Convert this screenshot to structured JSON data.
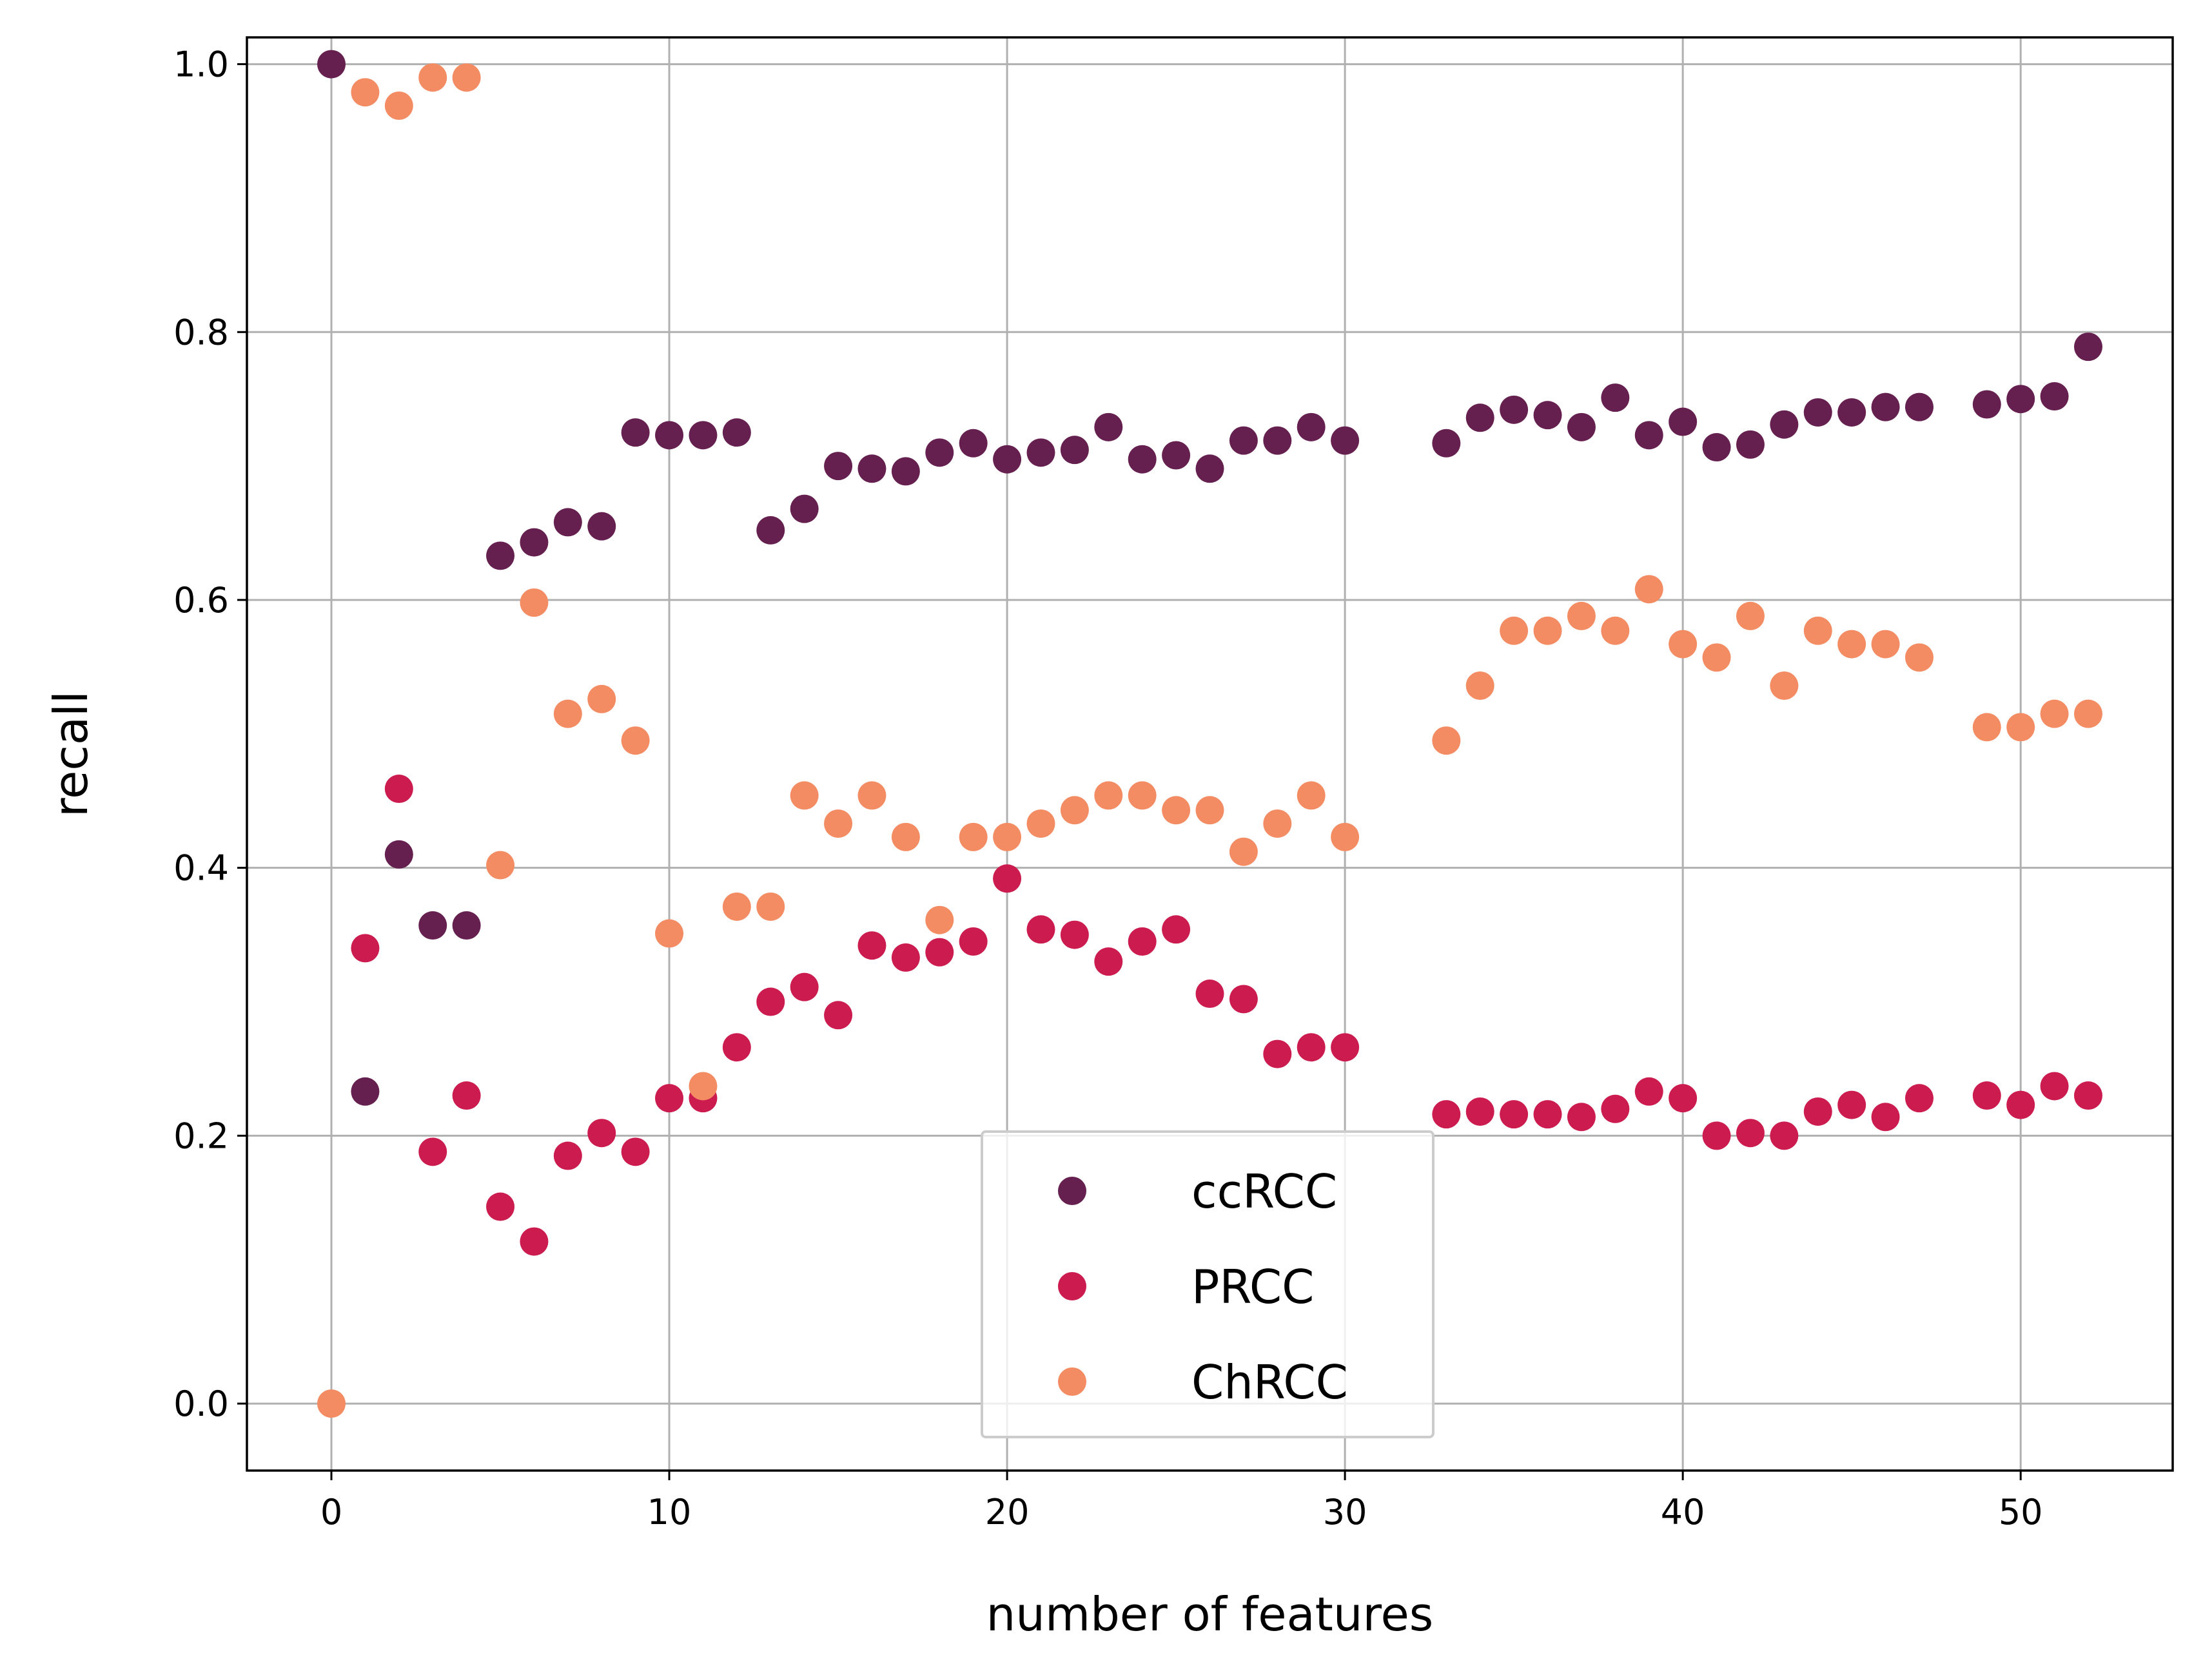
{
  "chart_data": {
    "type": "scatter",
    "title": "",
    "xlabel": "number of features",
    "ylabel": "recall",
    "xlim": [
      -2.5,
      54.5
    ],
    "ylim": [
      -0.05,
      1.02
    ],
    "xticks": [
      0,
      10,
      20,
      30,
      40,
      50
    ],
    "xtick_labels": [
      "0",
      "10",
      "20",
      "30",
      "40",
      "50"
    ],
    "yticks": [
      0.0,
      0.2,
      0.4,
      0.6,
      0.8,
      1.0
    ],
    "ytick_labels": [
      "0.0",
      "0.2",
      "0.4",
      "0.6",
      "0.8",
      "1.0"
    ],
    "grid": true,
    "legend_position": "lower-center",
    "series": [
      {
        "name": "ccRCC",
        "color": "#66204f",
        "points": [
          [
            0,
            1.0
          ],
          [
            1,
            0.233
          ],
          [
            2,
            0.41
          ],
          [
            3,
            0.357
          ],
          [
            4,
            0.357
          ],
          [
            5,
            0.633
          ],
          [
            6,
            0.643
          ],
          [
            7,
            0.658
          ],
          [
            8,
            0.655
          ],
          [
            9,
            0.725
          ],
          [
            10,
            0.723
          ],
          [
            11,
            0.723
          ],
          [
            12,
            0.725
          ],
          [
            13,
            0.652
          ],
          [
            14,
            0.668
          ],
          [
            15,
            0.7
          ],
          [
            16,
            0.698
          ],
          [
            17,
            0.696
          ],
          [
            18,
            0.71
          ],
          [
            19,
            0.717
          ],
          [
            20,
            0.705
          ],
          [
            21,
            0.71
          ],
          [
            22,
            0.712
          ],
          [
            23,
            0.729
          ],
          [
            24,
            0.705
          ],
          [
            25,
            0.708
          ],
          [
            26,
            0.698
          ],
          [
            27,
            0.719
          ],
          [
            28,
            0.719
          ],
          [
            29,
            0.729
          ],
          [
            30,
            0.719
          ],
          [
            33,
            0.717
          ],
          [
            34,
            0.736
          ],
          [
            35,
            0.742
          ],
          [
            36,
            0.738
          ],
          [
            37,
            0.729
          ],
          [
            38,
            0.751
          ],
          [
            39,
            0.723
          ],
          [
            40,
            0.733
          ],
          [
            41,
            0.714
          ],
          [
            42,
            0.716
          ],
          [
            43,
            0.731
          ],
          [
            44,
            0.74
          ],
          [
            45,
            0.74
          ],
          [
            46,
            0.744
          ],
          [
            47,
            0.744
          ],
          [
            49,
            0.746
          ],
          [
            50,
            0.75
          ],
          [
            51,
            0.752
          ],
          [
            52,
            0.789
          ]
        ]
      },
      {
        "name": "PRCC",
        "color": "#cb1b4f",
        "points": [
          [
            1,
            0.34
          ],
          [
            2,
            0.459
          ],
          [
            3,
            0.188
          ],
          [
            4,
            0.23
          ],
          [
            5,
            0.147
          ],
          [
            6,
            0.121
          ],
          [
            7,
            0.185
          ],
          [
            8,
            0.202
          ],
          [
            9,
            0.188
          ],
          [
            10,
            0.228
          ],
          [
            11,
            0.228
          ],
          [
            12,
            0.266
          ],
          [
            13,
            0.3
          ],
          [
            14,
            0.311
          ],
          [
            15,
            0.29
          ],
          [
            16,
            0.342
          ],
          [
            17,
            0.333
          ],
          [
            18,
            0.337
          ],
          [
            19,
            0.345
          ],
          [
            20,
            0.392
          ],
          [
            21,
            0.354
          ],
          [
            22,
            0.35
          ],
          [
            23,
            0.33
          ],
          [
            24,
            0.345
          ],
          [
            25,
            0.354
          ],
          [
            26,
            0.306
          ],
          [
            27,
            0.302
          ],
          [
            28,
            0.261
          ],
          [
            29,
            0.266
          ],
          [
            30,
            0.266
          ],
          [
            33,
            0.216
          ],
          [
            34,
            0.218
          ],
          [
            35,
            0.216
          ],
          [
            36,
            0.216
          ],
          [
            37,
            0.214
          ],
          [
            38,
            0.22
          ],
          [
            39,
            0.233
          ],
          [
            40,
            0.228
          ],
          [
            41,
            0.2
          ],
          [
            42,
            0.202
          ],
          [
            43,
            0.2
          ],
          [
            44,
            0.218
          ],
          [
            45,
            0.223
          ],
          [
            46,
            0.214
          ],
          [
            47,
            0.228
          ],
          [
            49,
            0.23
          ],
          [
            50,
            0.223
          ],
          [
            51,
            0.237
          ],
          [
            52,
            0.23
          ]
        ]
      },
      {
        "name": "ChRCC",
        "color": "#f48c63",
        "points": [
          [
            0,
            0.0
          ],
          [
            1,
            0.979
          ],
          [
            2,
            0.969
          ],
          [
            3,
            0.99
          ],
          [
            4,
            0.99
          ],
          [
            5,
            0.402
          ],
          [
            6,
            0.598
          ],
          [
            7,
            0.515
          ],
          [
            8,
            0.526
          ],
          [
            9,
            0.495
          ],
          [
            10,
            0.351
          ],
          [
            11,
            0.237
          ],
          [
            12,
            0.371
          ],
          [
            13,
            0.371
          ],
          [
            14,
            0.454
          ],
          [
            15,
            0.433
          ],
          [
            16,
            0.454
          ],
          [
            17,
            0.423
          ],
          [
            18,
            0.361
          ],
          [
            19,
            0.423
          ],
          [
            20,
            0.423
          ],
          [
            21,
            0.433
          ],
          [
            22,
            0.443
          ],
          [
            23,
            0.454
          ],
          [
            24,
            0.454
          ],
          [
            25,
            0.443
          ],
          [
            26,
            0.443
          ],
          [
            27,
            0.412
          ],
          [
            28,
            0.433
          ],
          [
            29,
            0.454
          ],
          [
            30,
            0.423
          ],
          [
            33,
            0.495
          ],
          [
            34,
            0.536
          ],
          [
            35,
            0.577
          ],
          [
            36,
            0.577
          ],
          [
            37,
            0.588
          ],
          [
            38,
            0.577
          ],
          [
            39,
            0.608
          ],
          [
            40,
            0.567
          ],
          [
            41,
            0.557
          ],
          [
            42,
            0.588
          ],
          [
            43,
            0.536
          ],
          [
            44,
            0.577
          ],
          [
            45,
            0.567
          ],
          [
            46,
            0.567
          ],
          [
            47,
            0.557
          ],
          [
            49,
            0.505
          ],
          [
            50,
            0.505
          ],
          [
            51,
            0.515
          ],
          [
            52,
            0.515
          ]
        ]
      }
    ]
  }
}
